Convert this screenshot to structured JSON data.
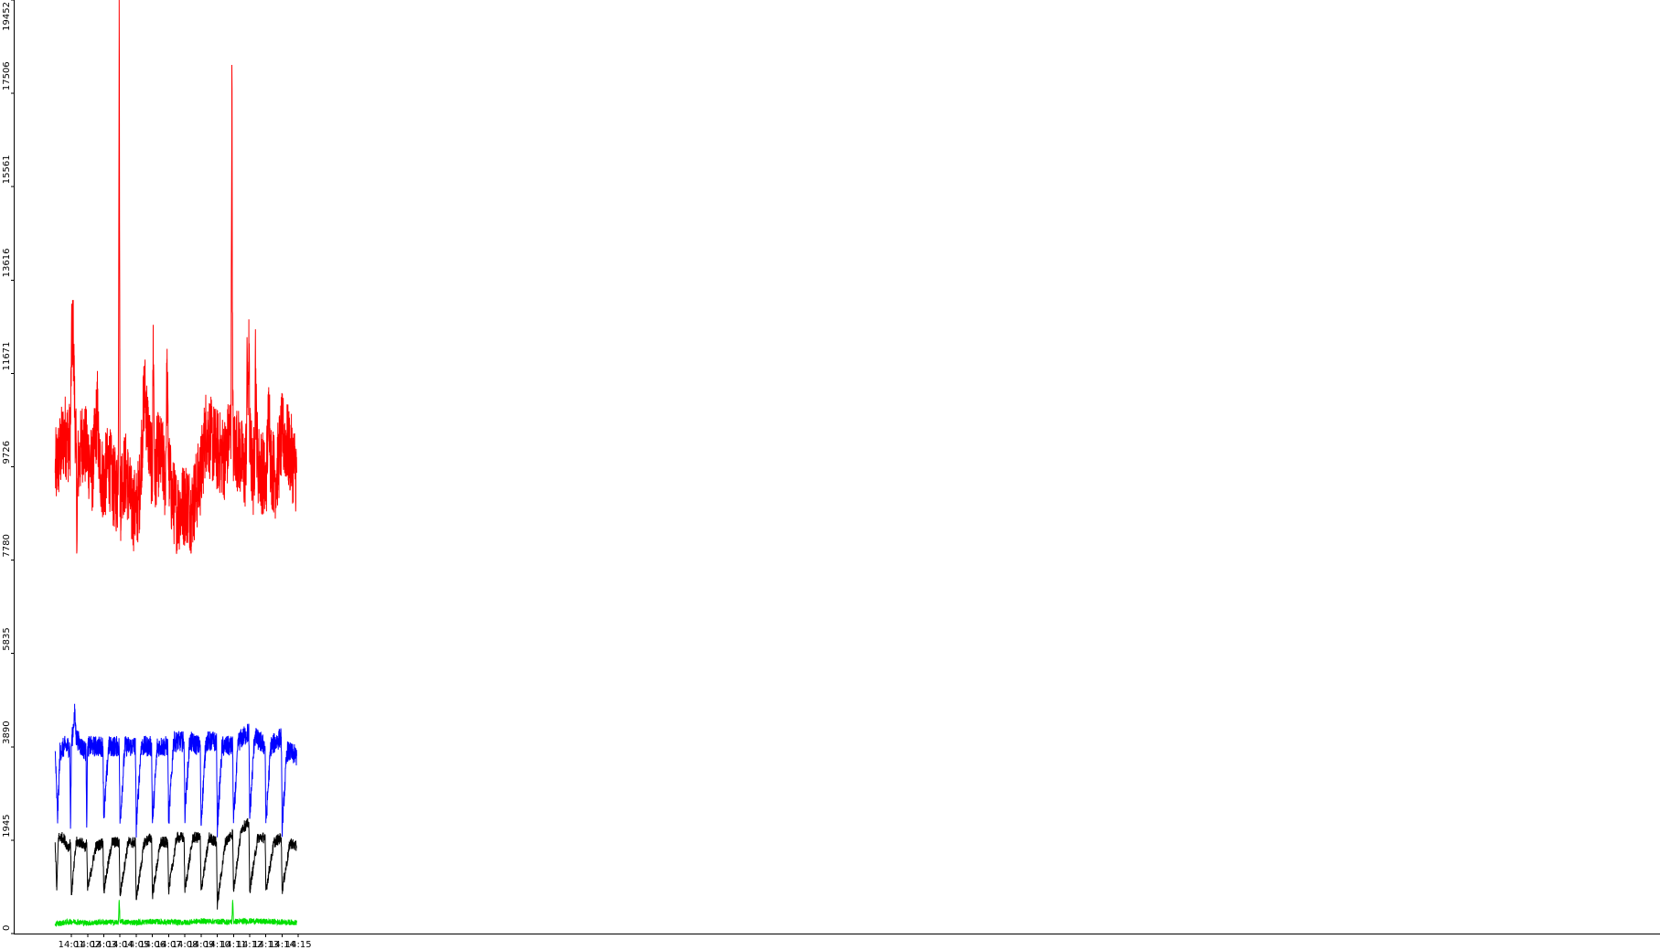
{
  "chart_data": {
    "type": "line",
    "title": "",
    "xlabel": "",
    "ylabel": "",
    "grid": false,
    "legend": "none",
    "xlim_minutes": [
      13.975,
      14.99
    ],
    "ylim": [
      0,
      19452
    ],
    "y_ticks": [
      {
        "value": 0,
        "label": "0"
      },
      {
        "value": 1945,
        "label": "1945"
      },
      {
        "value": 3890,
        "label": "3890"
      },
      {
        "value": 5835,
        "label": "5835"
      },
      {
        "value": 7780,
        "label": "7780"
      },
      {
        "value": 9726,
        "label": "9726"
      },
      {
        "value": 11671,
        "label": "11671"
      },
      {
        "value": 13616,
        "label": "13616"
      },
      {
        "value": 15561,
        "label": "15561"
      },
      {
        "value": 17506,
        "label": "17506"
      },
      {
        "value": 19452,
        "label": "19452"
      }
    ],
    "x_ticks": [
      {
        "value": 14.01,
        "label": "14:01"
      },
      {
        "value": 14.02,
        "label": "14:02"
      },
      {
        "value": 14.03,
        "label": "14:03"
      },
      {
        "value": 14.04,
        "label": "14:04"
      },
      {
        "value": 14.05,
        "label": "14:05"
      },
      {
        "value": 14.06,
        "label": "14:06"
      },
      {
        "value": 14.07,
        "label": "14:07"
      },
      {
        "value": 14.08,
        "label": "14:08"
      },
      {
        "value": 14.09,
        "label": "14:09"
      },
      {
        "value": 14.1,
        "label": "14:10"
      },
      {
        "value": 14.11,
        "label": "14:11"
      },
      {
        "value": 14.12,
        "label": "14:12"
      },
      {
        "value": 14.13,
        "label": "14:13"
      },
      {
        "value": 14.14,
        "label": "14:14"
      },
      {
        "value": 14.15,
        "label": "14:15"
      }
    ],
    "series": [
      {
        "color": "#ff0000",
        "x": [
          14.0,
          14.003,
          14.006,
          14.009,
          14.0095,
          14.01,
          14.011,
          14.012,
          14.013,
          14.0135,
          14.014,
          14.017,
          14.02,
          14.023,
          14.025,
          14.026,
          14.027,
          14.03,
          14.033,
          14.036,
          14.0385,
          14.039,
          14.0395,
          14.04,
          14.0405,
          14.041,
          14.044,
          14.047,
          14.05,
          14.052,
          14.053,
          14.054,
          14.055,
          14.058,
          14.06,
          14.0605,
          14.061,
          14.0615,
          14.062,
          14.063,
          14.066,
          14.068,
          14.069,
          14.07,
          14.072,
          14.075,
          14.078,
          14.081,
          14.084,
          14.087,
          14.09,
          14.093,
          14.096,
          14.099,
          14.102,
          14.105,
          14.1085,
          14.109,
          14.1095,
          14.11,
          14.111,
          14.114,
          14.117,
          14.118,
          14.1185,
          14.119,
          14.1195,
          14.12,
          14.122,
          14.123,
          14.1235,
          14.124,
          14.125,
          14.128,
          14.13,
          14.131,
          14.132,
          14.133,
          14.136,
          14.138,
          14.1385,
          14.139,
          14.14,
          14.143,
          14.146,
          14.149
        ],
        "y": [
          9600,
          10000,
          10400,
          10200,
          10600,
          12100,
          12700,
          11100,
          9900,
          8100,
          9700,
          10300,
          10000,
          9600,
          10400,
          11000,
          9800,
          9400,
          9800,
          9300,
          9200,
          10200,
          19452,
          9500,
          9000,
          9500,
          9600,
          8900,
          8800,
          9200,
          9900,
          10500,
          11400,
          10200,
          9600,
          12600,
          10800,
          9300,
          9700,
          10000,
          9900,
          9400,
          11700,
          9700,
          9100,
          8800,
          8900,
          9000,
          8800,
          9200,
          9600,
          10500,
          10300,
          10100,
          10000,
          9900,
          10600,
          18100,
          11000,
          10000,
          10200,
          10000,
          9600,
          10200,
          12200,
          10800,
          12800,
          10300,
          9500,
          9900,
          12300,
          10800,
          9800,
          9600,
          9300,
          10200,
          11100,
          9800,
          9500,
          9900,
          10100,
          10200,
          10400,
          10200,
          9900,
          9600
        ]
      },
      {
        "color": "#0000ff",
        "x": [
          14.0,
          14.0015,
          14.003,
          14.006,
          14.009,
          14.0095,
          14.01,
          14.012,
          14.013,
          14.016,
          14.019,
          14.0195,
          14.02,
          14.023,
          14.0295,
          14.03,
          14.033,
          14.0395,
          14.04,
          14.043,
          14.0495,
          14.05,
          14.053,
          14.0595,
          14.06,
          14.063,
          14.0695,
          14.07,
          14.073,
          14.0795,
          14.08,
          14.083,
          14.0895,
          14.09,
          14.093,
          14.0995,
          14.1,
          14.103,
          14.1095,
          14.11,
          14.113,
          14.1195,
          14.12,
          14.123,
          14.1295,
          14.13,
          14.133,
          14.1395,
          14.14,
          14.143,
          14.149
        ],
        "y": [
          3800,
          2400,
          3800,
          3900,
          3900,
          2200,
          3900,
          4600,
          4100,
          3900,
          3800,
          2300,
          3900,
          3900,
          3900,
          2400,
          3900,
          3900,
          2300,
          3900,
          3900,
          2200,
          3900,
          3900,
          2300,
          3900,
          3900,
          2300,
          4000,
          4000,
          2500,
          4000,
          3900,
          2300,
          4000,
          4000,
          2200,
          3900,
          3900,
          2300,
          4000,
          4200,
          2400,
          4100,
          3900,
          2300,
          3900,
          4100,
          2200,
          3800,
          3700
        ]
      },
      {
        "color": "#000000",
        "x": [
          14.0,
          14.001,
          14.002,
          14.005,
          14.008,
          14.0095,
          14.01,
          14.013,
          14.016,
          14.019,
          14.0195,
          14.02,
          14.025,
          14.0295,
          14.03,
          14.035,
          14.0395,
          14.04,
          14.045,
          14.0495,
          14.05,
          14.055,
          14.0595,
          14.06,
          14.065,
          14.0695,
          14.07,
          14.075,
          14.0795,
          14.08,
          14.085,
          14.0895,
          14.09,
          14.095,
          14.0995,
          14.1,
          14.105,
          14.1095,
          14.11,
          14.115,
          14.1195,
          14.12,
          14.125,
          14.1295,
          14.13,
          14.135,
          14.1395,
          14.14,
          14.145,
          14.149
        ],
        "y": [
          1900,
          900,
          2000,
          2000,
          1800,
          1900,
          800,
          1900,
          1900,
          1800,
          1900,
          900,
          1800,
          1900,
          900,
          1900,
          1900,
          800,
          1900,
          1900,
          700,
          1900,
          2000,
          800,
          1900,
          1900,
          900,
          2000,
          2000,
          900,
          2000,
          2000,
          900,
          2000,
          1900,
          600,
          1900,
          2100,
          900,
          2200,
          2300,
          900,
          2000,
          2000,
          900,
          1900,
          2000,
          900,
          1900,
          1800
        ]
      },
      {
        "color": "#00e000",
        "x": [
          14.0,
          14.01,
          14.02,
          14.03,
          14.039,
          14.0395,
          14.04,
          14.05,
          14.06,
          14.07,
          14.08,
          14.09,
          14.1,
          14.109,
          14.1095,
          14.11,
          14.12,
          14.13,
          14.14,
          14.149
        ],
        "y": [
          200,
          250,
          220,
          240,
          230,
          700,
          240,
          230,
          250,
          240,
          230,
          260,
          250,
          240,
          700,
          250,
          260,
          250,
          240,
          230
        ]
      }
    ]
  }
}
